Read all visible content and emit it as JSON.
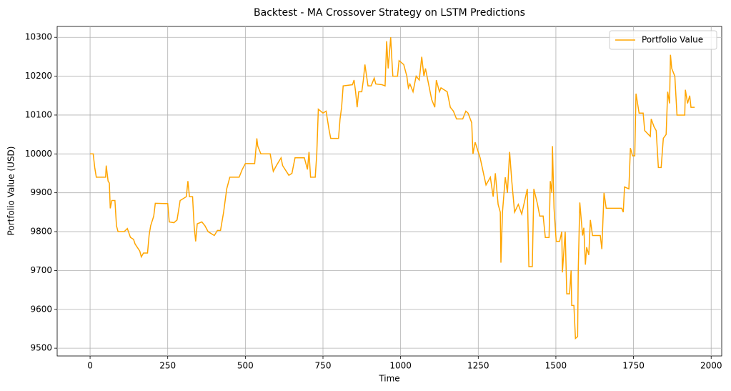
{
  "chart_data": {
    "type": "line",
    "title": "Backtest - MA Crossover Strategy on LSTM Predictions",
    "x_label": "Time",
    "y_label": "Portfolio Value (USD)",
    "xlim": [
      -106,
      2034
    ],
    "ylim": [
      9480,
      10328
    ],
    "xticks": [
      0,
      250,
      500,
      750,
      1000,
      1250,
      1500,
      1750,
      2000
    ],
    "yticks": [
      9500,
      9600,
      9700,
      9800,
      9900,
      10000,
      10100,
      10200,
      10300
    ],
    "grid": true,
    "legend": "upper right",
    "x": [
      0,
      10,
      15,
      20,
      50,
      52,
      58,
      62,
      65,
      70,
      80,
      85,
      90,
      110,
      120,
      130,
      140,
      145,
      160,
      165,
      172,
      185,
      190,
      195,
      205,
      210,
      250,
      255,
      270,
      280,
      290,
      310,
      315,
      320,
      330,
      335,
      340,
      345,
      360,
      370,
      380,
      400,
      410,
      420,
      430,
      440,
      450,
      480,
      490,
      500,
      530,
      537,
      540,
      550,
      580,
      590,
      600,
      615,
      620,
      640,
      650,
      660,
      690,
      700,
      705,
      710,
      725,
      730,
      735,
      750,
      760,
      770,
      775,
      800,
      805,
      810,
      815,
      845,
      850,
      855,
      860,
      865,
      875,
      880,
      885,
      895,
      905,
      915,
      920,
      940,
      950,
      955,
      960,
      968,
      972,
      975,
      990,
      995,
      1010,
      1020,
      1025,
      1030,
      1040,
      1050,
      1060,
      1068,
      1075,
      1080,
      1090,
      1100,
      1110,
      1115,
      1125,
      1130,
      1150,
      1160,
      1170,
      1180,
      1200,
      1210,
      1217,
      1229,
      1233,
      1240,
      1256,
      1275,
      1289,
      1298,
      1305,
      1314,
      1321,
      1323,
      1328,
      1337,
      1344,
      1351,
      1358,
      1367,
      1379,
      1390,
      1408,
      1413,
      1424,
      1429,
      1441,
      1448,
      1459,
      1466,
      1478,
      1482,
      1487,
      1489,
      1494,
      1501,
      1512,
      1519,
      1521,
      1530,
      1535,
      1544,
      1549,
      1551,
      1558,
      1563,
      1570,
      1572,
      1577,
      1586,
      1590,
      1595,
      1599,
      1606,
      1611,
      1618,
      1643,
      1648,
      1655,
      1662,
      1712,
      1717,
      1721,
      1735,
      1740,
      1747,
      1754,
      1758,
      1768,
      1781,
      1786,
      1804,
      1807,
      1816,
      1823,
      1830,
      1839,
      1846,
      1855,
      1860,
      1866,
      1869,
      1873,
      1883,
      1890,
      1915,
      1917,
      1924,
      1931,
      1935,
      1947
    ],
    "series": [
      {
        "name": "Portfolio Value",
        "color": "#ffa500",
        "values": [
          10000,
          10000,
          9965,
          9940,
          9940,
          9970,
          9930,
          9925,
          9860,
          9880,
          9880,
          9815,
          9800,
          9800,
          9808,
          9785,
          9780,
          9768,
          9750,
          9735,
          9745,
          9745,
          9790,
          9815,
          9840,
          9873,
          9872,
          9825,
          9823,
          9830,
          9880,
          9890,
          9930,
          9890,
          9890,
          9815,
          9775,
          9820,
          9825,
          9815,
          9800,
          9790,
          9803,
          9803,
          9850,
          9910,
          9940,
          9940,
          9960,
          9975,
          9975,
          10040,
          10020,
          10000,
          10000,
          9955,
          9970,
          9990,
          9970,
          9945,
          9950,
          9990,
          9990,
          9960,
          10005,
          9940,
          9940,
          10000,
          10115,
          10105,
          10110,
          10060,
          10040,
          10040,
          10090,
          10120,
          10175,
          10178,
          10190,
          10160,
          10120,
          10160,
          10160,
          10190,
          10230,
          10175,
          10175,
          10195,
          10180,
          10178,
          10175,
          10290,
          10220,
          10300,
          10240,
          10200,
          10200,
          10240,
          10230,
          10200,
          10170,
          10180,
          10160,
          10200,
          10190,
          10250,
          10200,
          10220,
          10180,
          10140,
          10120,
          10190,
          10160,
          10170,
          10160,
          10120,
          10110,
          10090,
          10090,
          10110,
          10105,
          10080,
          10000,
          10030,
          9990,
          9920,
          9940,
          9890,
          9950,
          9870,
          9850,
          9720,
          9850,
          9940,
          9900,
          10005,
          9930,
          9850,
          9870,
          9845,
          9910,
          9710,
          9710,
          9910,
          9870,
          9840,
          9840,
          9785,
          9785,
          9930,
          9900,
          10020,
          9860,
          9775,
          9775,
          9800,
          9695,
          9800,
          9640,
          9640,
          9700,
          9610,
          9610,
          9525,
          9530,
          9700,
          9875,
          9790,
          9810,
          9715,
          9760,
          9740,
          9830,
          9790,
          9790,
          9755,
          9900,
          9860,
          9860,
          9850,
          9915,
          9910,
          10015,
          9995,
          9995,
          10155,
          10105,
          10105,
          10060,
          10045,
          10090,
          10070,
          10060,
          9965,
          9965,
          10040,
          10050,
          10160,
          10130,
          10255,
          10220,
          10200,
          10100,
          10100,
          10165,
          10130,
          10150,
          10120,
          10120
        ]
      }
    ]
  }
}
